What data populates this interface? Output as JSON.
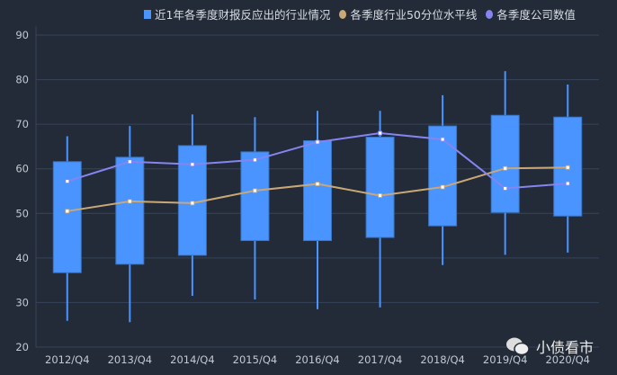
{
  "chart_data": {
    "type": "boxplot",
    "title": "",
    "xlabel": "",
    "ylabel": "",
    "ylim": [
      20,
      90
    ],
    "yticks": [
      20,
      30,
      40,
      50,
      60,
      70,
      80,
      90
    ],
    "grid": true,
    "legend_position": "top-right",
    "categories": [
      "2012/Q4",
      "2013/Q4",
      "2014/Q4",
      "2015/Q4",
      "2016/Q4",
      "2017/Q4",
      "2018/Q4",
      "2019/Q4",
      "2020/Q4"
    ],
    "boxes": {
      "name": "近1年各季度财报反应出的行业情况",
      "color": "#4a94ff",
      "min": [
        25.9,
        25.6,
        31.5,
        30.7,
        28.5,
        28.9,
        38.4,
        40.7,
        41.2
      ],
      "q1": [
        36.7,
        38.6,
        40.6,
        43.9,
        43.9,
        44.6,
        47.2,
        50.2,
        49.4
      ],
      "q3": [
        61.6,
        62.6,
        65.2,
        63.8,
        66.3,
        67.1,
        69.6,
        72.0,
        71.6
      ],
      "max": [
        67.3,
        69.6,
        72.2,
        71.6,
        73.0,
        73.0,
        76.5,
        81.9,
        78.9
      ]
    },
    "series": [
      {
        "name": "各季度行业50分位水平线",
        "color": "#c9a876",
        "values": [
          50.5,
          52.7,
          52.3,
          55.1,
          56.6,
          54.0,
          55.9,
          60.1,
          60.3
        ]
      },
      {
        "name": "各季度公司数值",
        "color": "#8585f2",
        "values": [
          57.2,
          61.6,
          61.0,
          62.0,
          66.0,
          68.0,
          66.6,
          55.6,
          56.7
        ]
      }
    ]
  },
  "watermark": "小债看市"
}
